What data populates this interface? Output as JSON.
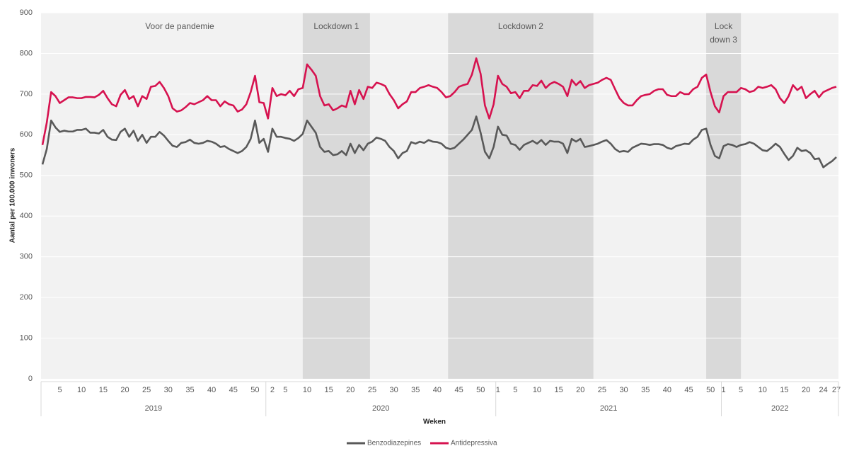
{
  "chart_data": {
    "type": "line",
    "y_axis_label": "Aantal per 100.000 inwoners",
    "x_axis_label": "Weken",
    "ylim": [
      0,
      900
    ],
    "yticks": [
      0,
      100,
      200,
      300,
      400,
      500,
      600,
      700,
      800,
      900
    ],
    "grid": true,
    "legend": "bottom",
    "categories": [
      null,
      null,
      null,
      null,
      "5",
      null,
      null,
      null,
      null,
      "10",
      null,
      null,
      null,
      null,
      "15",
      null,
      null,
      null,
      null,
      "20",
      null,
      null,
      null,
      null,
      "25",
      null,
      null,
      null,
      null,
      "30",
      null,
      null,
      null,
      null,
      "35",
      null,
      null,
      null,
      null,
      "40",
      null,
      null,
      null,
      null,
      "45",
      null,
      null,
      null,
      null,
      "50",
      null,
      null,
      null,
      "2",
      null,
      null,
      "5",
      null,
      null,
      null,
      null,
      "10",
      null,
      null,
      null,
      null,
      "15",
      null,
      null,
      null,
      null,
      "20",
      null,
      null,
      null,
      null,
      "25",
      null,
      null,
      null,
      null,
      "30",
      null,
      null,
      null,
      null,
      "35",
      null,
      null,
      null,
      null,
      "40",
      null,
      null,
      null,
      null,
      "45",
      null,
      null,
      null,
      null,
      "50",
      null,
      null,
      null,
      "1",
      null,
      null,
      null,
      "5",
      null,
      null,
      null,
      null,
      "10",
      null,
      null,
      null,
      null,
      "15",
      null,
      null,
      null,
      null,
      "20",
      null,
      null,
      null,
      null,
      "25",
      null,
      null,
      null,
      null,
      "30",
      null,
      null,
      null,
      null,
      "35",
      null,
      null,
      null,
      null,
      "40",
      null,
      null,
      null,
      null,
      "45",
      null,
      null,
      null,
      null,
      "50",
      null,
      null,
      "1",
      null,
      null,
      null,
      "5",
      null,
      null,
      null,
      null,
      "10",
      null,
      null,
      null,
      null,
      "15",
      null,
      null,
      null,
      null,
      "20",
      null,
      null,
      null,
      "24",
      null,
      null,
      "27"
    ],
    "year_groups": [
      {
        "label": "2019",
        "count": 52
      },
      {
        "label": "2020",
        "count": 53
      },
      {
        "label": "2021",
        "count": 52
      },
      {
        "label": "2022",
        "count": 27
      }
    ],
    "periods": [
      {
        "label": [
          "Voor de pandemie"
        ],
        "start": 0,
        "end": 60,
        "shaded": false
      },
      {
        "label": [
          "Lockdown 1"
        ],
        "start": 60,
        "end": 75.5,
        "shaded": true
      },
      {
        "label": [
          "Lockdown 2"
        ],
        "start": 93.5,
        "end": 127,
        "shaded": true
      },
      {
        "label": [
          "Lock",
          "down 3"
        ],
        "start": 153,
        "end": 161,
        "shaded": true
      }
    ],
    "series": [
      {
        "name": "Benzodiazepines",
        "color": "#595959",
        "values": [
          527,
          565,
          635,
          618,
          607,
          610,
          608,
          608,
          612,
          612,
          615,
          605,
          605,
          603,
          612,
          595,
          588,
          587,
          607,
          615,
          595,
          610,
          585,
          600,
          580,
          595,
          595,
          607,
          598,
          585,
          573,
          570,
          580,
          582,
          588,
          580,
          578,
          580,
          585,
          583,
          578,
          570,
          572,
          565,
          560,
          555,
          560,
          570,
          590,
          635,
          580,
          590,
          558,
          615,
          595,
          595,
          592,
          590,
          585,
          592,
          602,
          635,
          620,
          605,
          570,
          558,
          560,
          550,
          552,
          560,
          550,
          578,
          555,
          575,
          562,
          578,
          583,
          593,
          590,
          585,
          570,
          560,
          542,
          555,
          560,
          582,
          578,
          583,
          580,
          587,
          583,
          582,
          578,
          568,
          565,
          568,
          578,
          588,
          600,
          612,
          645,
          605,
          558,
          542,
          570,
          620,
          600,
          598,
          578,
          575,
          563,
          575,
          580,
          585,
          578,
          587,
          575,
          585,
          583,
          583,
          578,
          555,
          590,
          583,
          590,
          570,
          572,
          575,
          578,
          583,
          587,
          578,
          565,
          558,
          560,
          558,
          568,
          573,
          578,
          577,
          575,
          577,
          577,
          575,
          568,
          565,
          572,
          575,
          578,
          577,
          588,
          595,
          612,
          615,
          575,
          548,
          542,
          572,
          577,
          575,
          570,
          575,
          577,
          582,
          578,
          570,
          562,
          560,
          568,
          578,
          570,
          553,
          538,
          548,
          568,
          560,
          562,
          555,
          540,
          542,
          520,
          528,
          535,
          545
        ]
      },
      {
        "name": "Antidepressiva",
        "color": "#d6124f",
        "values": [
          575,
          630,
          705,
          695,
          678,
          685,
          692,
          692,
          690,
          690,
          693,
          693,
          692,
          698,
          708,
          690,
          675,
          670,
          698,
          710,
          688,
          695,
          670,
          695,
          688,
          718,
          720,
          730,
          715,
          695,
          665,
          657,
          660,
          668,
          678,
          675,
          680,
          685,
          695,
          685,
          685,
          670,
          682,
          675,
          672,
          657,
          662,
          675,
          705,
          745,
          680,
          678,
          640,
          715,
          695,
          700,
          697,
          708,
          695,
          712,
          715,
          773,
          760,
          745,
          695,
          672,
          675,
          660,
          665,
          672,
          668,
          708,
          675,
          710,
          688,
          718,
          715,
          728,
          725,
          720,
          700,
          685,
          665,
          675,
          682,
          705,
          705,
          715,
          718,
          722,
          718,
          715,
          705,
          692,
          695,
          705,
          718,
          722,
          725,
          748,
          788,
          750,
          672,
          640,
          675,
          745,
          725,
          718,
          702,
          705,
          690,
          708,
          708,
          722,
          720,
          733,
          715,
          725,
          730,
          725,
          718,
          695,
          735,
          722,
          732,
          715,
          722,
          725,
          728,
          735,
          740,
          735,
          712,
          690,
          678,
          672,
          672,
          685,
          695,
          698,
          700,
          708,
          712,
          712,
          698,
          695,
          695,
          705,
          700,
          700,
          712,
          718,
          740,
          748,
          705,
          670,
          655,
          695,
          705,
          705,
          705,
          715,
          712,
          705,
          708,
          718,
          715,
          718,
          722,
          712,
          690,
          678,
          695,
          722,
          710,
          718,
          690,
          700,
          708,
          692,
          705,
          710,
          715,
          718
        ]
      }
    ]
  }
}
